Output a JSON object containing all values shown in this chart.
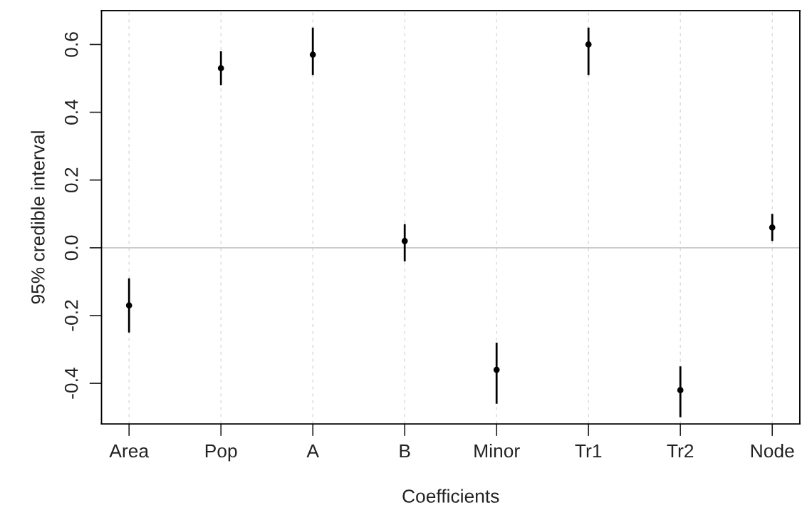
{
  "chart_data": {
    "type": "scatter",
    "xlabel": "Coefficients",
    "ylabel": "95% credible interval",
    "categories": [
      "Area",
      "Pop",
      "A",
      "B",
      "Minor",
      "Tr1",
      "Tr2",
      "Node"
    ],
    "values": [
      -0.17,
      0.53,
      0.57,
      0.02,
      -0.36,
      0.6,
      -0.42,
      0.06
    ],
    "errors": [
      [
        -0.25,
        -0.09
      ],
      [
        0.48,
        0.58
      ],
      [
        0.51,
        0.65
      ],
      [
        -0.04,
        0.07
      ],
      [
        -0.46,
        -0.28
      ],
      [
        0.51,
        0.65
      ],
      [
        -0.5,
        -0.35
      ],
      [
        0.02,
        0.1
      ]
    ],
    "color": "#000000",
    "marker": "circle",
    "ylim": [
      -0.52,
      0.7
    ],
    "yticks": [
      -0.4,
      -0.2,
      {
        "value": 0,
        "label": "0.0"
      },
      0.2,
      0.4,
      0.6
    ],
    "ref_lines": [
      {
        "axis": "y",
        "value": 0,
        "color": "#c8c8c8"
      }
    ],
    "grid": "x",
    "legend": false
  }
}
